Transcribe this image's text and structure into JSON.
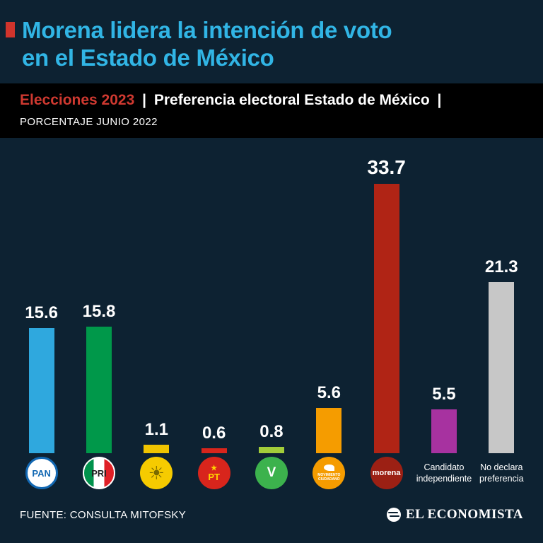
{
  "header": {
    "title_line1": "Morena lidera la intención de voto",
    "title_line2": "en el Estado de México",
    "title_color": "#31b5e5",
    "accent_color": "#d0342c"
  },
  "subheader": {
    "label_red": "Elecciones 2023",
    "separator": "|",
    "label_white": "Preferencia electoral Estado de México",
    "trailing_separator": "|",
    "caption": "PORCENTAJE JUNIO 2022"
  },
  "chart_data": {
    "type": "bar",
    "title": "Preferencia electoral Estado de México",
    "subtitle": "Porcentaje junio 2022",
    "categories": [
      "PAN",
      "PRI",
      "PRD",
      "PT",
      "Partido Verde",
      "Movimiento Ciudadano",
      "Morena",
      "Candidato independiente",
      "No declara preferencia"
    ],
    "values": [
      15.6,
      15.8,
      1.1,
      0.6,
      0.8,
      5.6,
      33.7,
      5.5,
      21.3
    ],
    "value_labels": [
      "15.6",
      "15.8",
      "1.1",
      "0.6",
      "0.8",
      "5.6",
      "33.7",
      "5.5",
      "21.3"
    ],
    "bar_colors": [
      "#2fa8de",
      "#00984a",
      "#f0c400",
      "#d8251c",
      "#a2cd3a",
      "#f59c00",
      "#b02415",
      "#a732a0",
      "#c7c7c7"
    ],
    "slugs": [
      "pan",
      "pri",
      "prd",
      "pt",
      "verde",
      "mc",
      "morena",
      "independiente",
      "no-declara"
    ],
    "ylim": [
      0,
      35
    ],
    "grid": false,
    "legend": "none",
    "logos": [
      {
        "kind": "pan",
        "text": "PAN"
      },
      {
        "kind": "pri",
        "text": "PRI"
      },
      {
        "kind": "prd",
        "text": "☀"
      },
      {
        "kind": "pt",
        "star": "★",
        "text": "PT"
      },
      {
        "kind": "verde",
        "text": "V"
      },
      {
        "kind": "mc",
        "text": "MOVIMIENTO CIUDADANO"
      },
      {
        "kind": "morena",
        "text": "morena"
      },
      {
        "kind": "text",
        "lines": [
          "Candidato",
          "independiente"
        ]
      },
      {
        "kind": "text",
        "lines": [
          "No declara",
          "preferencia"
        ]
      }
    ]
  },
  "footer": {
    "source": "FUENTE: CONSULTA MITOFSKY",
    "brand": "EL ECONOMISTA"
  }
}
